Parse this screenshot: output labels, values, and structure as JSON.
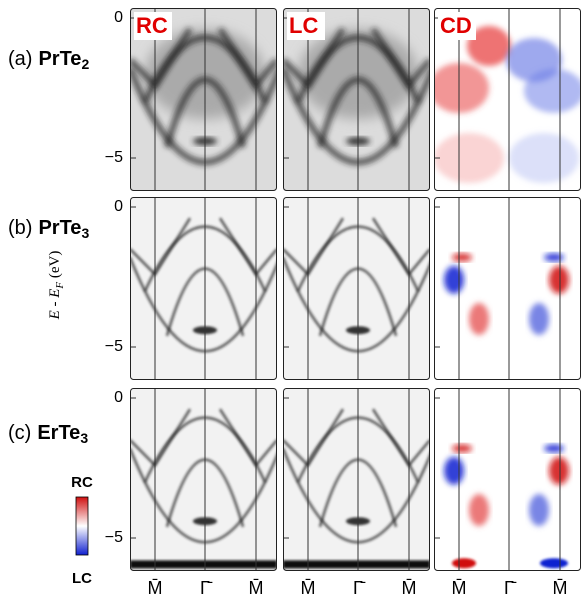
{
  "rows": [
    {
      "prefix": "(a)",
      "compound": "PrTe",
      "subscript": "2",
      "yticks": [
        "0",
        "−5"
      ]
    },
    {
      "prefix": "(b)",
      "compound": "PrTe",
      "subscript": "3",
      "yticks": [
        "0",
        "−5"
      ]
    },
    {
      "prefix": "(c)",
      "compound": "ErTe",
      "subscript": "3",
      "yticks": [
        "0",
        "−5"
      ]
    }
  ],
  "panel_labels": [
    "RC",
    "LC",
    "CD"
  ],
  "axis_label": {
    "main": "E - E",
    "sub": "F",
    "unit": " (eV)"
  },
  "k_labels": [
    "M̄",
    "Γ̄",
    "M̄"
  ],
  "colorbar": {
    "top": "RC",
    "bottom": "LC"
  }
}
